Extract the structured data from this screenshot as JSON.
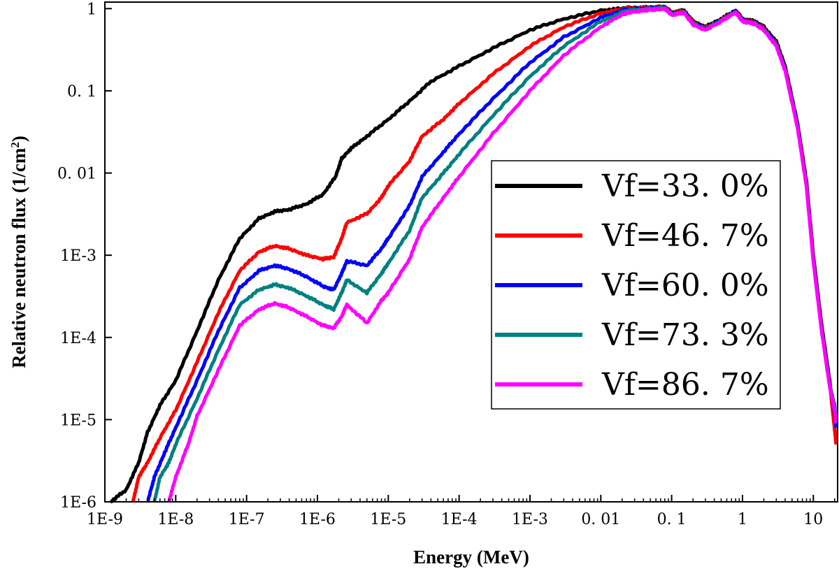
{
  "chart_data": {
    "type": "line",
    "xlabel": "Energy (MeV)",
    "ylabel": "Relative neutron flux (1/cm",
    "ylabel_sup": "2",
    "ylabel_close": ")",
    "xscale": "log",
    "yscale": "log",
    "xlim": [
      1e-09,
      22
    ],
    "ylim": [
      1e-06,
      1.2
    ],
    "xticks": [
      {
        "value": 1e-09,
        "label": "1E-9"
      },
      {
        "value": 1e-08,
        "label": "1E-8"
      },
      {
        "value": 1e-07,
        "label": "1E-7"
      },
      {
        "value": 1e-06,
        "label": "1E-6"
      },
      {
        "value": 1e-05,
        "label": "1E-5"
      },
      {
        "value": 0.0001,
        "label": "1E-4"
      },
      {
        "value": 0.001,
        "label": "1E-3"
      },
      {
        "value": 0.01,
        "label": "0. 01"
      },
      {
        "value": 0.1,
        "label": "0. 1"
      },
      {
        "value": 1,
        "label": "1"
      },
      {
        "value": 10,
        "label": "10"
      }
    ],
    "yticks": [
      {
        "value": 1e-06,
        "label": "1E-6"
      },
      {
        "value": 1e-05,
        "label": "1E-5"
      },
      {
        "value": 0.0001,
        "label": "1E-4"
      },
      {
        "value": 0.001,
        "label": "1E-3"
      },
      {
        "value": 0.01,
        "label": "0. 01"
      },
      {
        "value": 0.1,
        "label": "0. 1"
      },
      {
        "value": 1,
        "label": "1"
      }
    ],
    "grid": false,
    "legend_position": "center-right",
    "series": [
      {
        "name": "Vf=33. 0%",
        "color": "#000000",
        "points": [
          [
            1.2e-09,
            1e-06
          ],
          [
            2e-09,
            1.4e-06
          ],
          [
            3e-09,
            3e-06
          ],
          [
            4e-09,
            7e-06
          ],
          [
            6e-09,
            1.5e-05
          ],
          [
            1e-08,
            3e-05
          ],
          [
            2e-08,
            0.00012
          ],
          [
            4e-08,
            0.0005
          ],
          [
            8e-08,
            0.0016
          ],
          [
            1.5e-07,
            0.0028
          ],
          [
            2.5e-07,
            0.0034
          ],
          [
            4e-07,
            0.0036
          ],
          [
            7e-07,
            0.0042
          ],
          [
            1.2e-06,
            0.0055
          ],
          [
            1.8e-06,
            0.009
          ],
          [
            2.2e-06,
            0.015
          ],
          [
            3e-06,
            0.02
          ],
          [
            5e-06,
            0.028
          ],
          [
            1e-05,
            0.045
          ],
          [
            2e-05,
            0.075
          ],
          [
            4e-05,
            0.13
          ],
          [
            0.0001,
            0.2
          ],
          [
            0.0003,
            0.33
          ],
          [
            0.001,
            0.55
          ],
          [
            0.003,
            0.75
          ],
          [
            0.01,
            0.95
          ],
          [
            0.02,
            1.0
          ],
          [
            0.025,
            1.02
          ],
          [
            0.04,
            1.03
          ],
          [
            0.06,
            1.04
          ],
          [
            0.08,
            1.05
          ],
          [
            0.1,
            0.9
          ],
          [
            0.15,
            0.95
          ],
          [
            0.2,
            0.7
          ],
          [
            0.3,
            0.6
          ],
          [
            0.5,
            0.75
          ],
          [
            0.8,
            0.95
          ],
          [
            1.0,
            0.75
          ],
          [
            1.5,
            0.7
          ],
          [
            2,
            0.6
          ],
          [
            3,
            0.4
          ],
          [
            4,
            0.2
          ],
          [
            6,
            0.04
          ],
          [
            8,
            0.008
          ],
          [
            10,
            0.001
          ],
          [
            13,
            0.00015
          ],
          [
            17,
            3e-05
          ],
          [
            20,
            8e-06
          ],
          [
            21,
            5e-06
          ]
        ]
      },
      {
        "name": "Vf=46. 7%",
        "color": "#ff0000",
        "points": [
          [
            2.5e-09,
            1e-06
          ],
          [
            3e-09,
            2e-06
          ],
          [
            4e-09,
            3e-06
          ],
          [
            6e-09,
            6e-06
          ],
          [
            1e-08,
            1.3e-05
          ],
          [
            2e-08,
            5e-05
          ],
          [
            4e-08,
            0.0002
          ],
          [
            8e-08,
            0.00065
          ],
          [
            1.5e-07,
            0.0011
          ],
          [
            2.5e-07,
            0.0013
          ],
          [
            4e-07,
            0.0012
          ],
          [
            7e-07,
            0.001
          ],
          [
            1.2e-06,
            0.0009
          ],
          [
            1.7e-06,
            0.00095
          ],
          [
            2.2e-06,
            0.0016
          ],
          [
            2.6e-06,
            0.0025
          ],
          [
            5e-06,
            0.0032
          ],
          [
            8e-06,
            0.005
          ],
          [
            1e-05,
            0.007
          ],
          [
            2e-05,
            0.014
          ],
          [
            3e-05,
            0.028
          ],
          [
            6e-05,
            0.045
          ],
          [
            0.0001,
            0.07
          ],
          [
            0.0003,
            0.16
          ],
          [
            0.001,
            0.35
          ],
          [
            0.003,
            0.6
          ],
          [
            0.01,
            0.88
          ],
          [
            0.02,
            0.98
          ],
          [
            0.025,
            1.0
          ],
          [
            0.04,
            1.02
          ],
          [
            0.06,
            1.03
          ],
          [
            0.08,
            1.04
          ],
          [
            0.1,
            0.88
          ],
          [
            0.15,
            0.93
          ],
          [
            0.2,
            0.68
          ],
          [
            0.3,
            0.58
          ],
          [
            0.5,
            0.73
          ],
          [
            0.8,
            0.93
          ],
          [
            1.0,
            0.73
          ],
          [
            1.5,
            0.68
          ],
          [
            2,
            0.58
          ],
          [
            3,
            0.38
          ],
          [
            4,
            0.19
          ],
          [
            6,
            0.038
          ],
          [
            8,
            0.0075
          ],
          [
            10,
            0.0009
          ],
          [
            13,
            0.00014
          ],
          [
            17,
            2.8e-05
          ],
          [
            20,
            7.5e-06
          ],
          [
            21,
            5e-06
          ]
        ]
      },
      {
        "name": "Vf=60. 0%",
        "color": "#0000ff",
        "points": [
          [
            4e-09,
            1e-06
          ],
          [
            5e-09,
            2e-06
          ],
          [
            7e-09,
            4e-06
          ],
          [
            1e-08,
            8e-06
          ],
          [
            2e-08,
            3e-05
          ],
          [
            4e-08,
            0.00012
          ],
          [
            8e-08,
            0.0004
          ],
          [
            1.5e-07,
            0.00065
          ],
          [
            2.5e-07,
            0.00075
          ],
          [
            4e-07,
            0.00068
          ],
          [
            7e-07,
            0.00055
          ],
          [
            1.2e-06,
            0.00042
          ],
          [
            1.7e-06,
            0.00038
          ],
          [
            2.2e-06,
            0.0006
          ],
          [
            2.6e-06,
            0.00085
          ],
          [
            5e-06,
            0.00075
          ],
          [
            8e-06,
            0.0012
          ],
          [
            1e-05,
            0.0016
          ],
          [
            2e-05,
            0.004
          ],
          [
            3e-05,
            0.009
          ],
          [
            6e-05,
            0.018
          ],
          [
            0.0001,
            0.03
          ],
          [
            0.0003,
            0.08
          ],
          [
            0.001,
            0.22
          ],
          [
            0.003,
            0.45
          ],
          [
            0.01,
            0.78
          ],
          [
            0.02,
            0.95
          ],
          [
            0.025,
            0.98
          ],
          [
            0.04,
            1.0
          ],
          [
            0.06,
            1.02
          ],
          [
            0.08,
            1.03
          ],
          [
            0.1,
            0.86
          ],
          [
            0.15,
            0.91
          ],
          [
            0.2,
            0.66
          ],
          [
            0.3,
            0.57
          ],
          [
            0.5,
            0.72
          ],
          [
            0.8,
            0.92
          ],
          [
            1.0,
            0.72
          ],
          [
            1.5,
            0.67
          ],
          [
            2,
            0.57
          ],
          [
            3,
            0.37
          ],
          [
            4,
            0.185
          ],
          [
            6,
            0.037
          ],
          [
            8,
            0.0072
          ],
          [
            10,
            0.00088
          ],
          [
            13,
            0.000135
          ],
          [
            17,
            2.7e-05
          ],
          [
            20,
            1.2e-05
          ],
          [
            21,
            8e-06
          ]
        ]
      },
      {
        "name": "Vf=73. 3%",
        "color": "#008080",
        "points": [
          [
            5e-09,
            1e-06
          ],
          [
            6e-09,
            2e-06
          ],
          [
            8e-09,
            3e-06
          ],
          [
            1e-08,
            5e-06
          ],
          [
            2e-08,
            1.8e-05
          ],
          [
            4e-08,
            7e-05
          ],
          [
            8e-08,
            0.00025
          ],
          [
            1.5e-07,
            0.00038
          ],
          [
            2.5e-07,
            0.00044
          ],
          [
            4e-07,
            0.0004
          ],
          [
            7e-07,
            0.00032
          ],
          [
            1.2e-06,
            0.00025
          ],
          [
            1.7e-06,
            0.00022
          ],
          [
            2.2e-06,
            0.00035
          ],
          [
            2.6e-06,
            0.0005
          ],
          [
            5e-06,
            0.00035
          ],
          [
            8e-06,
            0.0006
          ],
          [
            1e-05,
            0.0008
          ],
          [
            2e-05,
            0.002
          ],
          [
            3e-05,
            0.005
          ],
          [
            6e-05,
            0.01
          ],
          [
            0.0001,
            0.017
          ],
          [
            0.0003,
            0.05
          ],
          [
            0.001,
            0.15
          ],
          [
            0.003,
            0.35
          ],
          [
            0.01,
            0.7
          ],
          [
            0.02,
            0.9
          ],
          [
            0.025,
            0.95
          ],
          [
            0.04,
            0.98
          ],
          [
            0.06,
            1.0
          ],
          [
            0.08,
            1.02
          ],
          [
            0.1,
            0.85
          ],
          [
            0.15,
            0.9
          ],
          [
            0.2,
            0.65
          ],
          [
            0.3,
            0.56
          ],
          [
            0.5,
            0.71
          ],
          [
            0.8,
            0.91
          ],
          [
            1.0,
            0.71
          ],
          [
            1.5,
            0.66
          ],
          [
            2,
            0.56
          ],
          [
            3,
            0.36
          ],
          [
            4,
            0.18
          ],
          [
            6,
            0.036
          ],
          [
            8,
            0.007
          ],
          [
            10,
            0.00086
          ],
          [
            13,
            0.00013
          ],
          [
            17,
            2.6e-05
          ],
          [
            20,
            1.5e-05
          ],
          [
            21,
            9e-06
          ]
        ]
      },
      {
        "name": "Vf=86. 7%",
        "color": "#ff00ff",
        "points": [
          [
            8e-09,
            1e-06
          ],
          [
            1e-08,
            2e-06
          ],
          [
            1.5e-08,
            5e-06
          ],
          [
            2e-08,
            1.1e-05
          ],
          [
            4e-08,
            4e-05
          ],
          [
            8e-08,
            0.00014
          ],
          [
            1.5e-07,
            0.00022
          ],
          [
            2.5e-07,
            0.00026
          ],
          [
            4e-07,
            0.00023
          ],
          [
            7e-07,
            0.00018
          ],
          [
            1.2e-06,
            0.00014
          ],
          [
            1.7e-06,
            0.00013
          ],
          [
            2.2e-06,
            0.00018
          ],
          [
            2.6e-06,
            0.00025
          ],
          [
            5e-06,
            0.00015
          ],
          [
            8e-06,
            0.00028
          ],
          [
            1e-05,
            0.00035
          ],
          [
            2e-05,
            0.0009
          ],
          [
            3e-05,
            0.0022
          ],
          [
            6e-05,
            0.005
          ],
          [
            0.0001,
            0.009
          ],
          [
            0.0003,
            0.03
          ],
          [
            0.001,
            0.1
          ],
          [
            0.003,
            0.27
          ],
          [
            0.01,
            0.6
          ],
          [
            0.02,
            0.85
          ],
          [
            0.025,
            0.9
          ],
          [
            0.04,
            0.95
          ],
          [
            0.06,
            0.98
          ],
          [
            0.08,
            1.0
          ],
          [
            0.1,
            0.84
          ],
          [
            0.15,
            0.89
          ],
          [
            0.2,
            0.64
          ],
          [
            0.3,
            0.55
          ],
          [
            0.5,
            0.7
          ],
          [
            0.8,
            0.9
          ],
          [
            1.0,
            0.7
          ],
          [
            1.5,
            0.65
          ],
          [
            2,
            0.55
          ],
          [
            3,
            0.35
          ],
          [
            4,
            0.175
          ],
          [
            6,
            0.035
          ],
          [
            8,
            0.0068
          ],
          [
            10,
            0.00084
          ],
          [
            13,
            0.000125
          ],
          [
            17,
            2.5e-05
          ],
          [
            20,
            1.3e-05
          ],
          [
            21,
            9e-06
          ]
        ]
      }
    ]
  }
}
